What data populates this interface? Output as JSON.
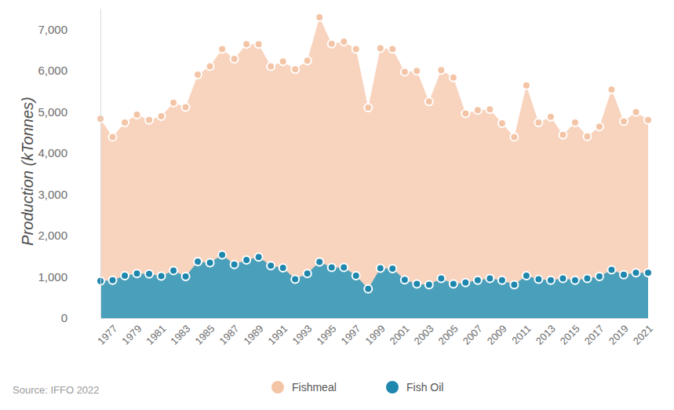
{
  "chart_data": {
    "type": "area",
    "y_label": "Production (kTonnes)",
    "annotation": "Source: IFFO 2022",
    "x": [
      1976,
      1977,
      1978,
      1979,
      1980,
      1981,
      1982,
      1983,
      1984,
      1985,
      1986,
      1987,
      1988,
      1989,
      1990,
      1991,
      1992,
      1993,
      1994,
      1995,
      1996,
      1997,
      1998,
      1999,
      2000,
      2001,
      2002,
      2003,
      2004,
      2005,
      2006,
      2007,
      2008,
      2009,
      2010,
      2011,
      2012,
      2013,
      2014,
      2015,
      2016,
      2017,
      2018,
      2019,
      2020,
      2021
    ],
    "xlim": [
      1976,
      2021
    ],
    "xticks": [
      1977,
      1979,
      1981,
      1983,
      1985,
      1987,
      1989,
      1991,
      1993,
      1995,
      1997,
      1999,
      2001,
      2003,
      2005,
      2007,
      2009,
      2011,
      2013,
      2015,
      2017,
      2019,
      2021
    ],
    "ylim": [
      0,
      7500
    ],
    "yticks": [
      0,
      {
        "value": 1000,
        "label": "1,000"
      },
      {
        "value": 2000,
        "label": "2,000"
      },
      {
        "value": 3000,
        "label": "3,000"
      },
      {
        "value": 4000,
        "label": "4,000"
      },
      {
        "value": 5000,
        "label": "5,000"
      },
      {
        "value": 6000,
        "label": "6,000"
      },
      {
        "value": 7000,
        "label": "7,000"
      }
    ],
    "grid": false,
    "legend": "bottom",
    "marker": "circle",
    "series": [
      {
        "name": "Fishmeal",
        "color": "#f8d3bd",
        "values": [
          4830,
          4390,
          4740,
          4930,
          4800,
          4890,
          5220,
          5110,
          5900,
          6100,
          6520,
          6280,
          6640,
          6640,
          6100,
          6220,
          6030,
          6240,
          7290,
          6650,
          6700,
          6520,
          5100,
          6540,
          6520,
          5970,
          5990,
          5250,
          6010,
          5830,
          4960,
          5040,
          5060,
          4720,
          4390,
          5640,
          4740,
          4880,
          4440,
          4740,
          4400,
          4640,
          5540,
          4770,
          4990,
          4800
        ]
      },
      {
        "name": "Fish Oil",
        "color": "#4a9fbb",
        "values": [
          900,
          920,
          1030,
          1080,
          1070,
          1020,
          1150,
          1010,
          1370,
          1340,
          1530,
          1300,
          1410,
          1480,
          1270,
          1220,
          940,
          1080,
          1360,
          1230,
          1230,
          1030,
          710,
          1210,
          1200,
          930,
          830,
          810,
          960,
          830,
          860,
          920,
          960,
          920,
          810,
          1030,
          940,
          920,
          960,
          920,
          960,
          1010,
          1170,
          1050,
          1100,
          1100
        ]
      }
    ]
  }
}
